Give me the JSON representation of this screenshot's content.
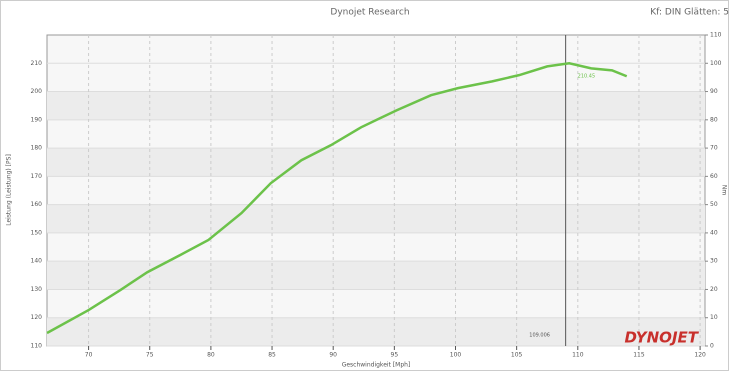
{
  "chart_data": {
    "type": "line",
    "title": "Dynojet Research",
    "header_right": "Kf: DIN Glätten: 5",
    "xlabel": "Geschwindigkeit [Mph]",
    "ylabel": "Leistung (Leistung) [PS]",
    "y2label": "Nm",
    "x": [
      66.6,
      70,
      72.6,
      74.8,
      77.5,
      79.8,
      82.5,
      84.9,
      87.4,
      89.8,
      92.3,
      95.2,
      98,
      100.2,
      103,
      105.2,
      107.5,
      109.3,
      111.1,
      112.8,
      114
    ],
    "series": [
      {
        "color": "#6cc24a",
        "values": [
          114.6,
          122.7,
          129.8,
          136.1,
          142.2,
          147.5,
          157,
          167.6,
          175.7,
          181,
          187.4,
          193.4,
          198.7,
          201.2,
          203.6,
          205.8,
          208.9,
          210,
          208.2,
          207.5,
          205.4
        ]
      }
    ],
    "xlim": [
      66.6,
      120.4
    ],
    "xticks": [
      70,
      75,
      80,
      85,
      90,
      95,
      100,
      105,
      110,
      115,
      120
    ],
    "ylim": [
      110,
      220
    ],
    "yticks": [
      110,
      120,
      130,
      140,
      150,
      160,
      170,
      180,
      190,
      200,
      210
    ],
    "y2lim": [
      0,
      110
    ],
    "y2ticks": [
      0,
      10,
      20,
      30,
      40,
      50,
      60,
      70,
      80,
      90,
      100,
      110
    ],
    "grid": true,
    "cursor_x": 109.006,
    "peak_value": 210.45,
    "logo": "DYNOJET"
  }
}
